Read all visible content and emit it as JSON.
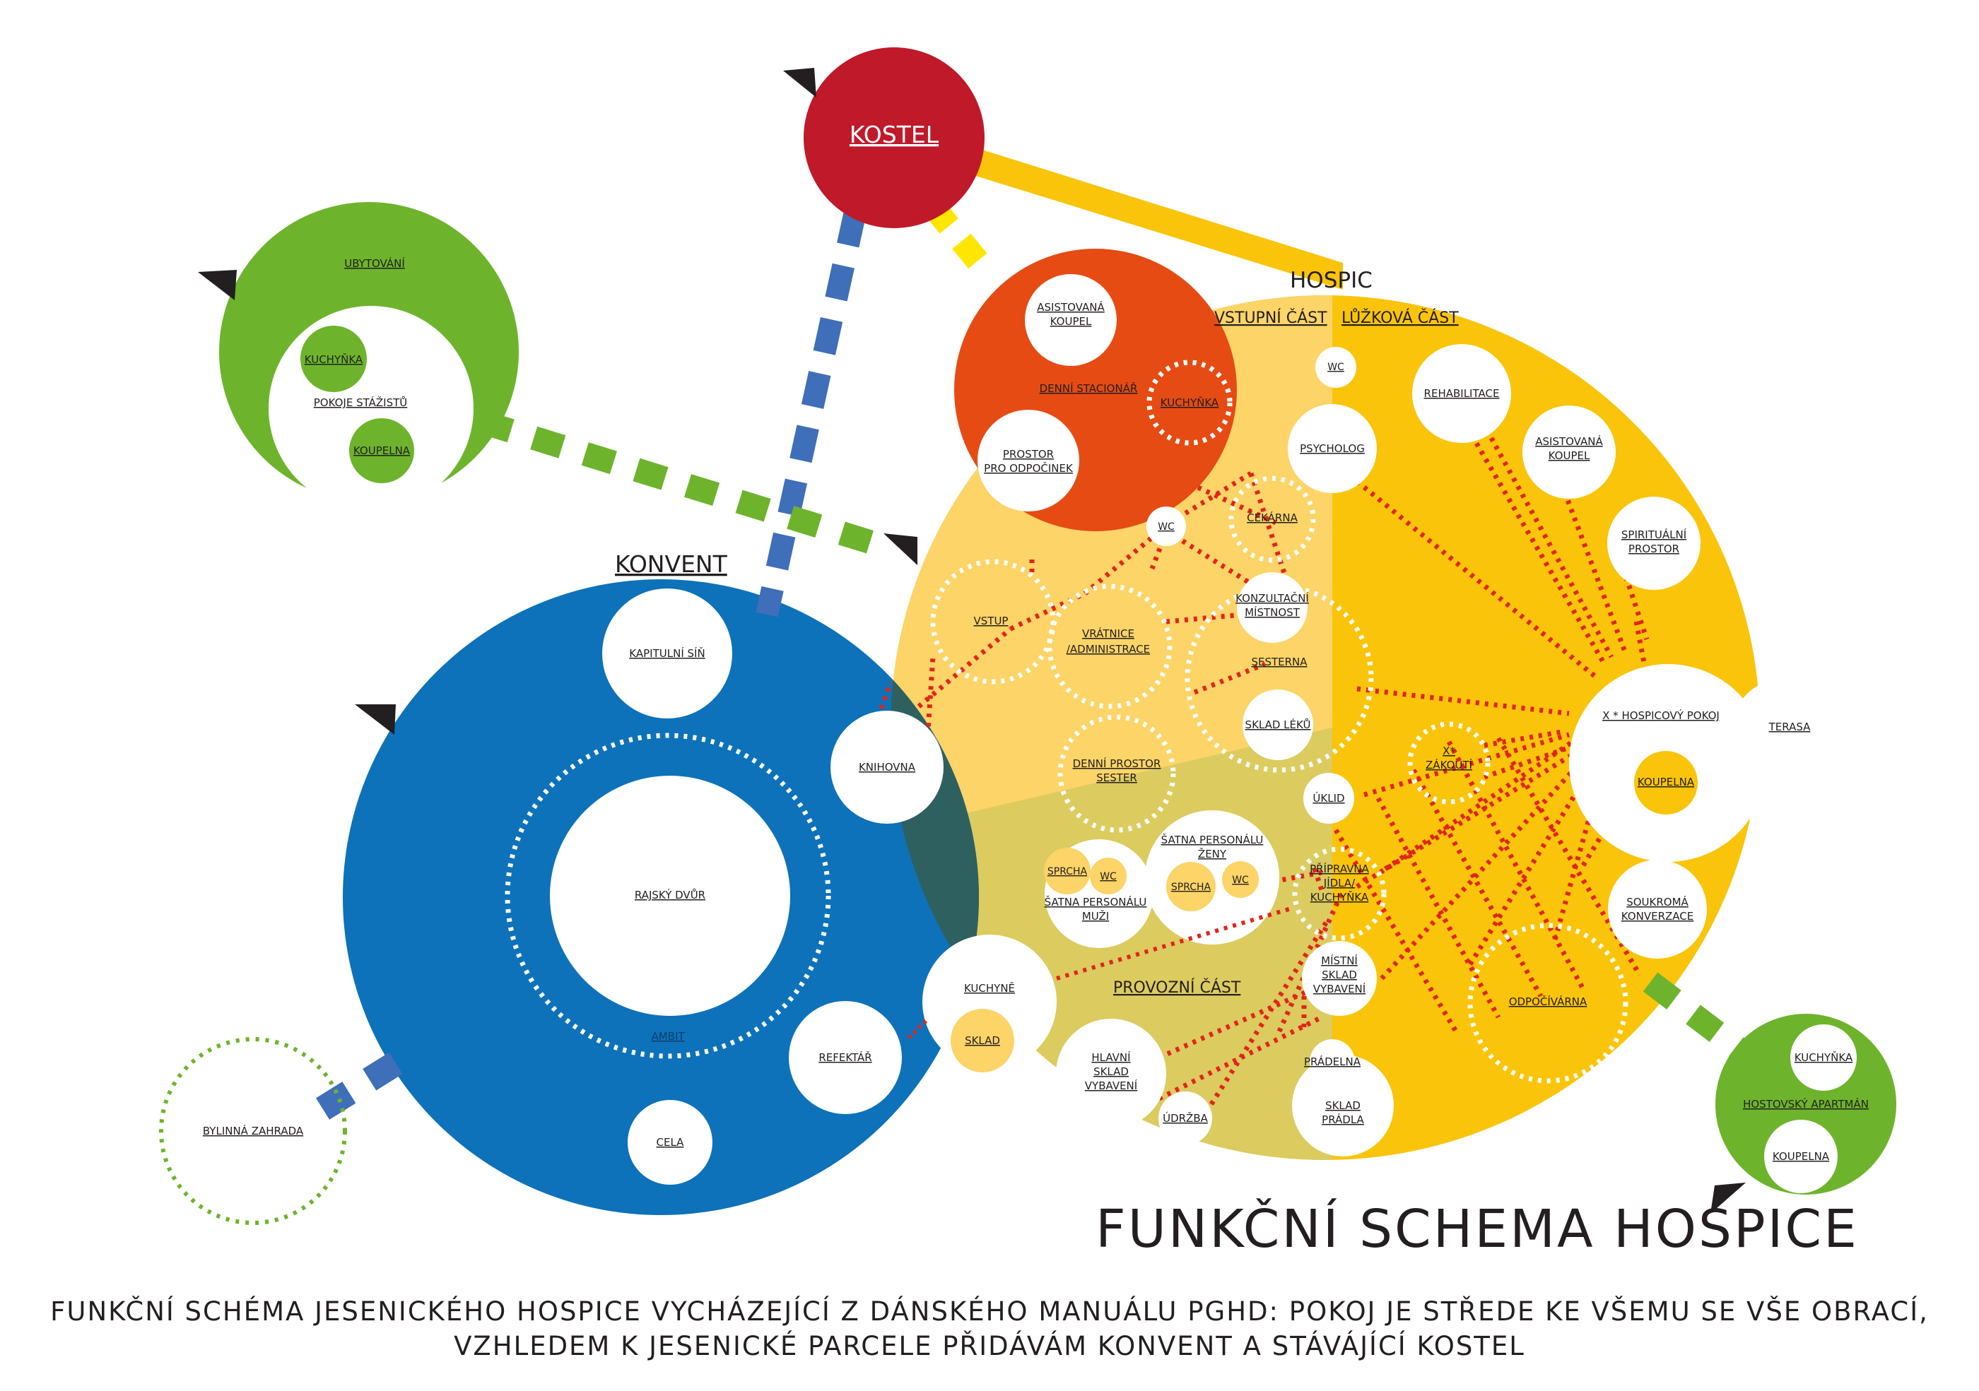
{
  "title": "FUNKČNÍ SCHEMA HOSPICE",
  "description_lines": [
    "FUNKČNÍ SCHÉMA JESENICKÉHO HOSPICE VYCHÁZEJÍCÍ Z DÁNSKÉHO MANUÁLU PGHD: POKOJ JE STŘEDE KE VŠEMU SE VŠE OBRACÍ,",
    "VZHLEDEM K JESENICKÉ PARCELE PŘIDÁVÁM KONVENT A STÁVÁJÍCÍ KOSTEL"
  ],
  "colors": {
    "church_red": "#c0192a",
    "convent_blue": "#0d72b9",
    "day_center_orange": "#e64b14",
    "hospice_light": "#fcd467",
    "hospice_gold": "#fac40a",
    "service_olive": "#dccb5f",
    "accommodation_green": "#6db42c",
    "link_red": "#e1251b",
    "link_blue": "#3e6fb8",
    "link_yellow": "#ffe600"
  },
  "kostel": {
    "label": "KOSTEL"
  },
  "hospic": {
    "label": "HOSPIC",
    "zones": {
      "entrance": "VSTUPNÍ ČÁST",
      "bed": "LŮŽKOVÁ ČÁST",
      "service": "PROVOZNÍ ČÁST"
    },
    "rooms": {
      "asistovana_koupel_1": [
        "ASISTOVANÁ",
        "KOUPEL"
      ],
      "denni_stacionar": "DENNÍ STACIONÁŘ",
      "kuchynka_stacionar": "KUCHYŇKA",
      "prostor_pro_odpocinek": [
        "PROSTOR",
        "PRO ODPOČINEK"
      ],
      "wc_1": "WC",
      "wc_2": "WC",
      "psycholog": "PSYCHOLOG",
      "cekarna": "ČEKÁRNA",
      "vstup": "VSTUP",
      "vratnice": [
        "VRÁTNICE",
        "/ADMINISTRACE"
      ],
      "konzultacni": [
        "KONZULTAČNÍ",
        "MÍSTNOST"
      ],
      "sesterna": "SESTERNA",
      "sklad_leku": "SKLAD LÉKŮ",
      "denni_prostor_sester": [
        "DENNÍ PROSTOR",
        "SESTER"
      ],
      "uklid": "ÚKLID",
      "satna_zeny": [
        "ŠATNA PERSONÁLU",
        "ŽENY"
      ],
      "sprcha": "SPRCHA",
      "wc": "WC",
      "satna_muzi": [
        "ŠATNA PERSONÁLU",
        "MUŽI"
      ],
      "pripravna": [
        "PŘÍPRAVNA",
        "JÍDLA/",
        "KUCHYŇKA"
      ],
      "mistni_sklad": [
        "MÍSTNÍ",
        "SKLAD",
        "VYBAVENÍ"
      ],
      "pradelna": "PRÁDELNA",
      "sklad_pradla": [
        "SKLAD",
        "PRÁDLA"
      ],
      "hlavni_sklad": [
        "HLAVNÍ",
        "SKLAD",
        "VYBAVENÍ"
      ],
      "udrzba": "ÚDRŽBA",
      "rehabilitace": "REHABILITACE",
      "asistovana_koupel_2": [
        "ASISTOVANÁ",
        "KOUPEL"
      ],
      "spiritualni": [
        "SPIRITUÁLNÍ",
        "PROSTOR"
      ],
      "hospicovy_pokoj": "X * HOSPICOVÝ POKOJ",
      "koupelna": "KOUPELNA",
      "terasa": "TERASA",
      "zakouti": [
        "X*",
        "ZÁKOUTÍ"
      ],
      "soukroma_konverzace": [
        "SOUKROMÁ",
        "KONVERZACE"
      ],
      "odpocivarna": "ODPOČÍVÁRNA"
    }
  },
  "konvent": {
    "label": "KONVENT",
    "rooms": {
      "kapitulni_sin": "KAPITULNÍ SÍŇ",
      "knihovna": "KNIHOVNA",
      "rajsky_dvur": "RAJSKÝ DVŮR",
      "ambit": "AMBIT",
      "refektar": "REFEKTÁŘ",
      "cela": "CELA",
      "kuchyne": "KUCHYNĚ",
      "sklad": "SKLAD"
    }
  },
  "ubytovani": {
    "label": "UBYTOVÁNÍ",
    "kuchynka": "KUCHYŇKA",
    "pokoje": "POKOJE STÁŽISTŮ",
    "koupelna": "KOUPELNA"
  },
  "hostovsky": {
    "kuchynka": "KUCHYŇKA",
    "apartman": "HOSTOVSKÝ APARTMÁN",
    "koupelna": "KOUPELNA"
  },
  "bylinna_zahrada": {
    "label": "BYLINNÁ ZAHRADA"
  }
}
